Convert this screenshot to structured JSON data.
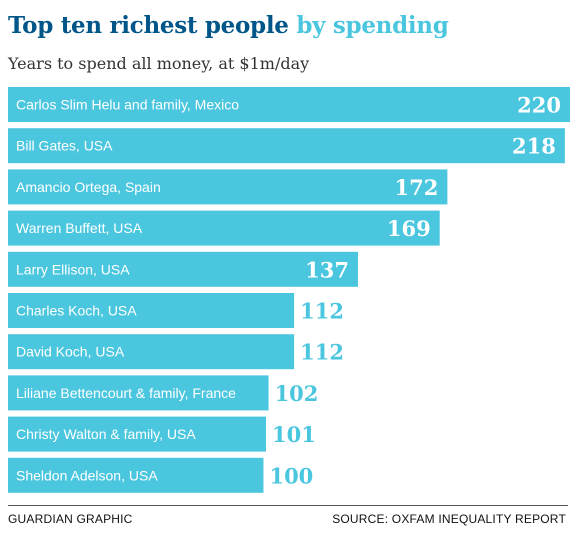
{
  "colors": {
    "bar": "#4bc6df",
    "title_dark": "#005689",
    "value_outside": "#4bc6df",
    "value_inside": "#ffffff"
  },
  "footer": {
    "credit": "GUARDIAN GRAPHIC",
    "source": "SOURCE: OXFAM INEQUALITY REPORT"
  },
  "chart_data": {
    "type": "bar",
    "orientation": "horizontal",
    "title": "Top ten richest people by spending",
    "title_main": "Top ten richest people",
    "title_accent": "by spending",
    "subtitle": "Years to spend all money, at $1m/day",
    "xlabel": "",
    "ylabel": "",
    "xlim": [
      0,
      220
    ],
    "grid": false,
    "legend": "none",
    "categories": [
      "Carlos Slim Helu and family, Mexico",
      "Bill Gates, USA",
      "Amancio Ortega, Spain",
      "Warren Buffett, USA",
      "Larry Ellison, USA",
      "Charles Koch, USA",
      "David Koch, USA",
      "Liliane Bettencourt & family, France",
      "Christy Walton & family, USA",
      "Sheldon Adelson, USA"
    ],
    "values": [
      220,
      218,
      172,
      169,
      137,
      112,
      112,
      102,
      101,
      100
    ]
  }
}
